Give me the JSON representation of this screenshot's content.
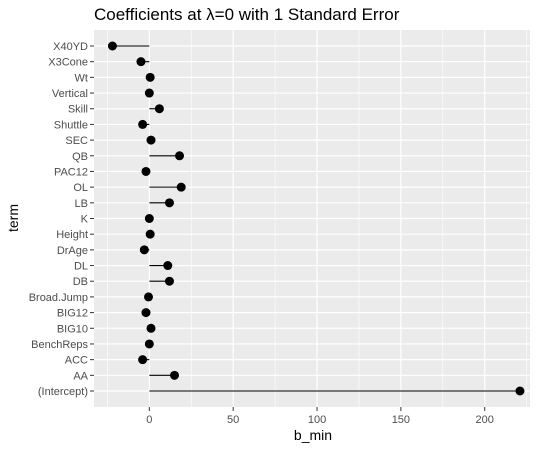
{
  "chart_data": {
    "type": "lollipop",
    "title": "Coefficients at λ=0 with 1 Standard Error",
    "xlabel": "b_min",
    "ylabel": "term",
    "xlim": [
      -33,
      227
    ],
    "x_ticks": [
      0,
      50,
      100,
      150,
      200
    ],
    "grid": true,
    "colors": {
      "panel": "#ebebeb",
      "grid_major": "#ffffff",
      "point": "#000000",
      "segment": "#000000"
    },
    "categories": [
      "X40YD",
      "X3Cone",
      "Wt",
      "Vertical",
      "Skill",
      "Shuttle",
      "SEC",
      "QB",
      "PAC12",
      "OL",
      "LB",
      "K",
      "Height",
      "DrAge",
      "DL",
      "DB",
      "Broad.Jump",
      "BIG12",
      "BIG10",
      "BenchReps",
      "ACC",
      "AA",
      "(Intercept)"
    ],
    "values": [
      -22,
      -5,
      0.5,
      0,
      6,
      -4,
      1,
      18,
      -2,
      19,
      12,
      0,
      0.5,
      -3,
      11,
      12,
      -0.5,
      -2,
      1,
      0,
      -4,
      15,
      221
    ]
  }
}
